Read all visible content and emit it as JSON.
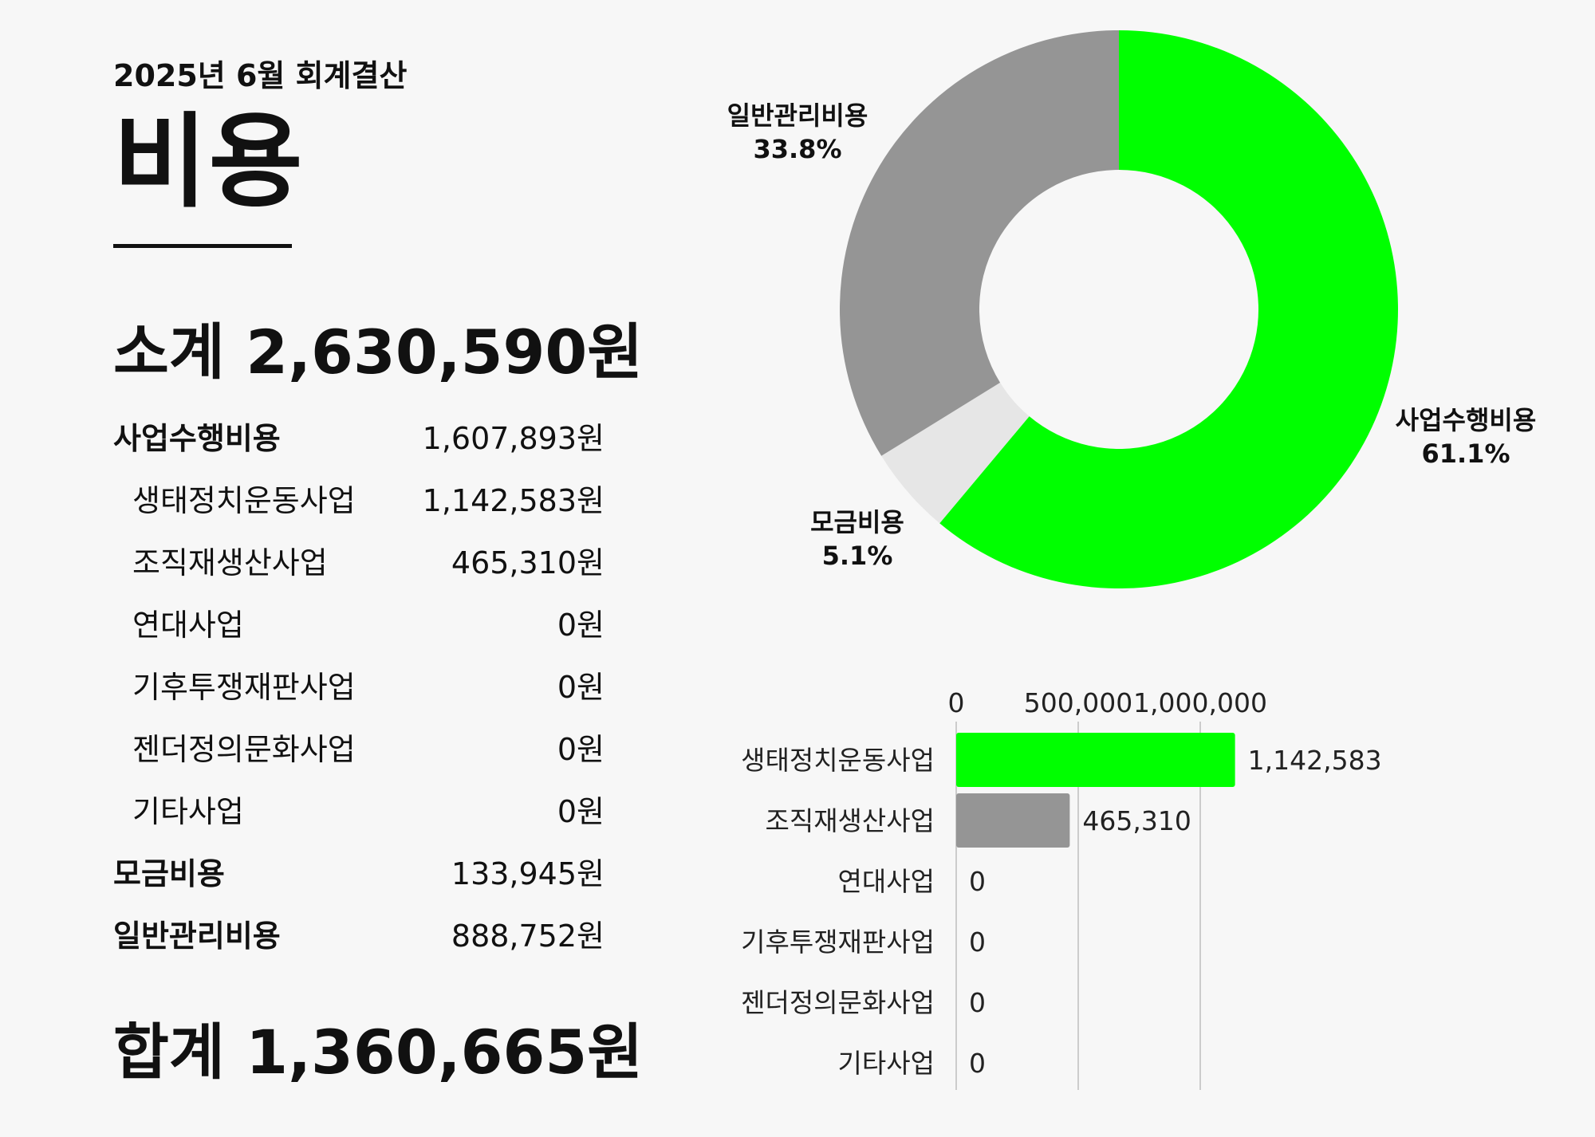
{
  "header": {
    "subtitle": "2025년 6월 회계결산",
    "title": "비용",
    "subtotal": "소계 2,630,590원",
    "total": "합계 1,360,665원"
  },
  "rows": [
    {
      "label": "사업수행비용",
      "value": "1,607,893원",
      "level": "main"
    },
    {
      "label": "생태정치운동사업",
      "value": "1,142,583원",
      "level": "sub"
    },
    {
      "label": "조직재생산사업",
      "value": "465,310원",
      "level": "sub"
    },
    {
      "label": "연대사업",
      "value": "0원",
      "level": "sub"
    },
    {
      "label": "기후투쟁재판사업",
      "value": "0원",
      "level": "sub"
    },
    {
      "label": "젠더정의문화사업",
      "value": "0원",
      "level": "sub"
    },
    {
      "label": "기타사업",
      "value": "0원",
      "level": "sub"
    },
    {
      "label": "모금비용",
      "value": "133,945원",
      "level": "main"
    },
    {
      "label": "일반관리비용",
      "value": "888,752원",
      "level": "main"
    }
  ],
  "colors": {
    "green": "#00ff00",
    "gray": "#959595",
    "light": "#e6e6e6",
    "grid": "#cccccc"
  },
  "chart_data": [
    {
      "type": "pie",
      "donut": true,
      "slices": [
        {
          "label": "사업수행비용",
          "percent_label": "61.1%",
          "value": 61.1,
          "color": "#00ff00"
        },
        {
          "label": "모금비용",
          "percent_label": "5.1%",
          "value": 5.1,
          "color": "#e6e6e6"
        },
        {
          "label": "일반관리비용",
          "percent_label": "33.8%",
          "value": 33.8,
          "color": "#959595"
        }
      ]
    },
    {
      "type": "bar",
      "orientation": "horizontal",
      "categories": [
        "생태정치운동사업",
        "조직재생산사업",
        "연대사업",
        "기후투쟁재판사업",
        "젠더정의문화사업",
        "기타사업"
      ],
      "values": [
        1142583,
        465310,
        0,
        0,
        0,
        0
      ],
      "value_labels": [
        "1,142,583",
        "465,310",
        "0",
        "0",
        "0",
        "0"
      ],
      "colors": [
        "#00ff00",
        "#959595",
        "#959595",
        "#959595",
        "#959595",
        "#959595"
      ],
      "xlim": [
        0,
        1500000
      ],
      "ticks": [
        0,
        500000,
        1000000
      ],
      "tick_labels": [
        "0",
        "500,000",
        "1,000,000"
      ],
      "axis_position": "top",
      "grid": true
    }
  ]
}
